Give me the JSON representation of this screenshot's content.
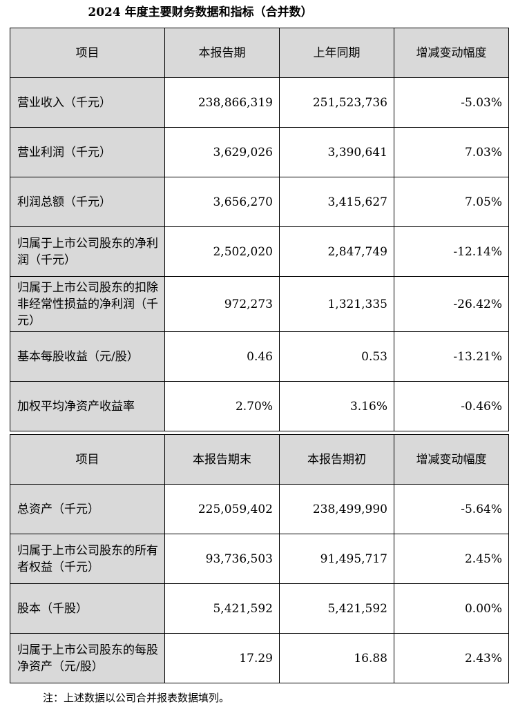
{
  "title": "2024 年度主要财务数据和指标（合并数）",
  "table1": {
    "headers": [
      "项目",
      "本报告期",
      "上年同期",
      "增减变动幅度"
    ],
    "rows": [
      {
        "label": "营业收入（千元）",
        "current": "238,866,319",
        "prior": "251,523,736",
        "change": "-5.03%"
      },
      {
        "label": "营业利润（千元）",
        "current": "3,629,026",
        "prior": "3,390,641",
        "change": "7.03%"
      },
      {
        "label": "利润总额（千元）",
        "current": "3,656,270",
        "prior": "3,415,627",
        "change": "7.05%"
      },
      {
        "label": "归属于上市公司股东的净利润（千元）",
        "current": "2,502,020",
        "prior": "2,847,749",
        "change": "-12.14%"
      },
      {
        "label": "归属于上市公司股东的扣除非经常性损益的净利润（千元）",
        "current": "972,273",
        "prior": "1,321,335",
        "change": "-26.42%"
      },
      {
        "label": "基本每股收益（元/股）",
        "current": "0.46",
        "prior": "0.53",
        "change": "-13.21%"
      },
      {
        "label": "加权平均净资产收益率",
        "current": "2.70%",
        "prior": "3.16%",
        "change": "-0.46%"
      }
    ]
  },
  "table2": {
    "headers": [
      "项目",
      "本报告期末",
      "本报告期初",
      "增减变动幅度"
    ],
    "rows": [
      {
        "label": "总资产（千元）",
        "end": "225,059,402",
        "begin": "238,499,990",
        "change": "-5.64%"
      },
      {
        "label": "归属于上市公司股东的所有者权益（千元）",
        "end": "93,736,503",
        "begin": "91,495,717",
        "change": "2.45%"
      },
      {
        "label": "股本（千股）",
        "end": "5,421,592",
        "begin": "5,421,592",
        "change": "0.00%"
      },
      {
        "label": "归属于上市公司股东的每股净资产（元/股）",
        "end": "17.29",
        "begin": "16.88",
        "change": "2.43%"
      }
    ]
  },
  "note": "注：上述数据以公司合并报表数据填列。"
}
